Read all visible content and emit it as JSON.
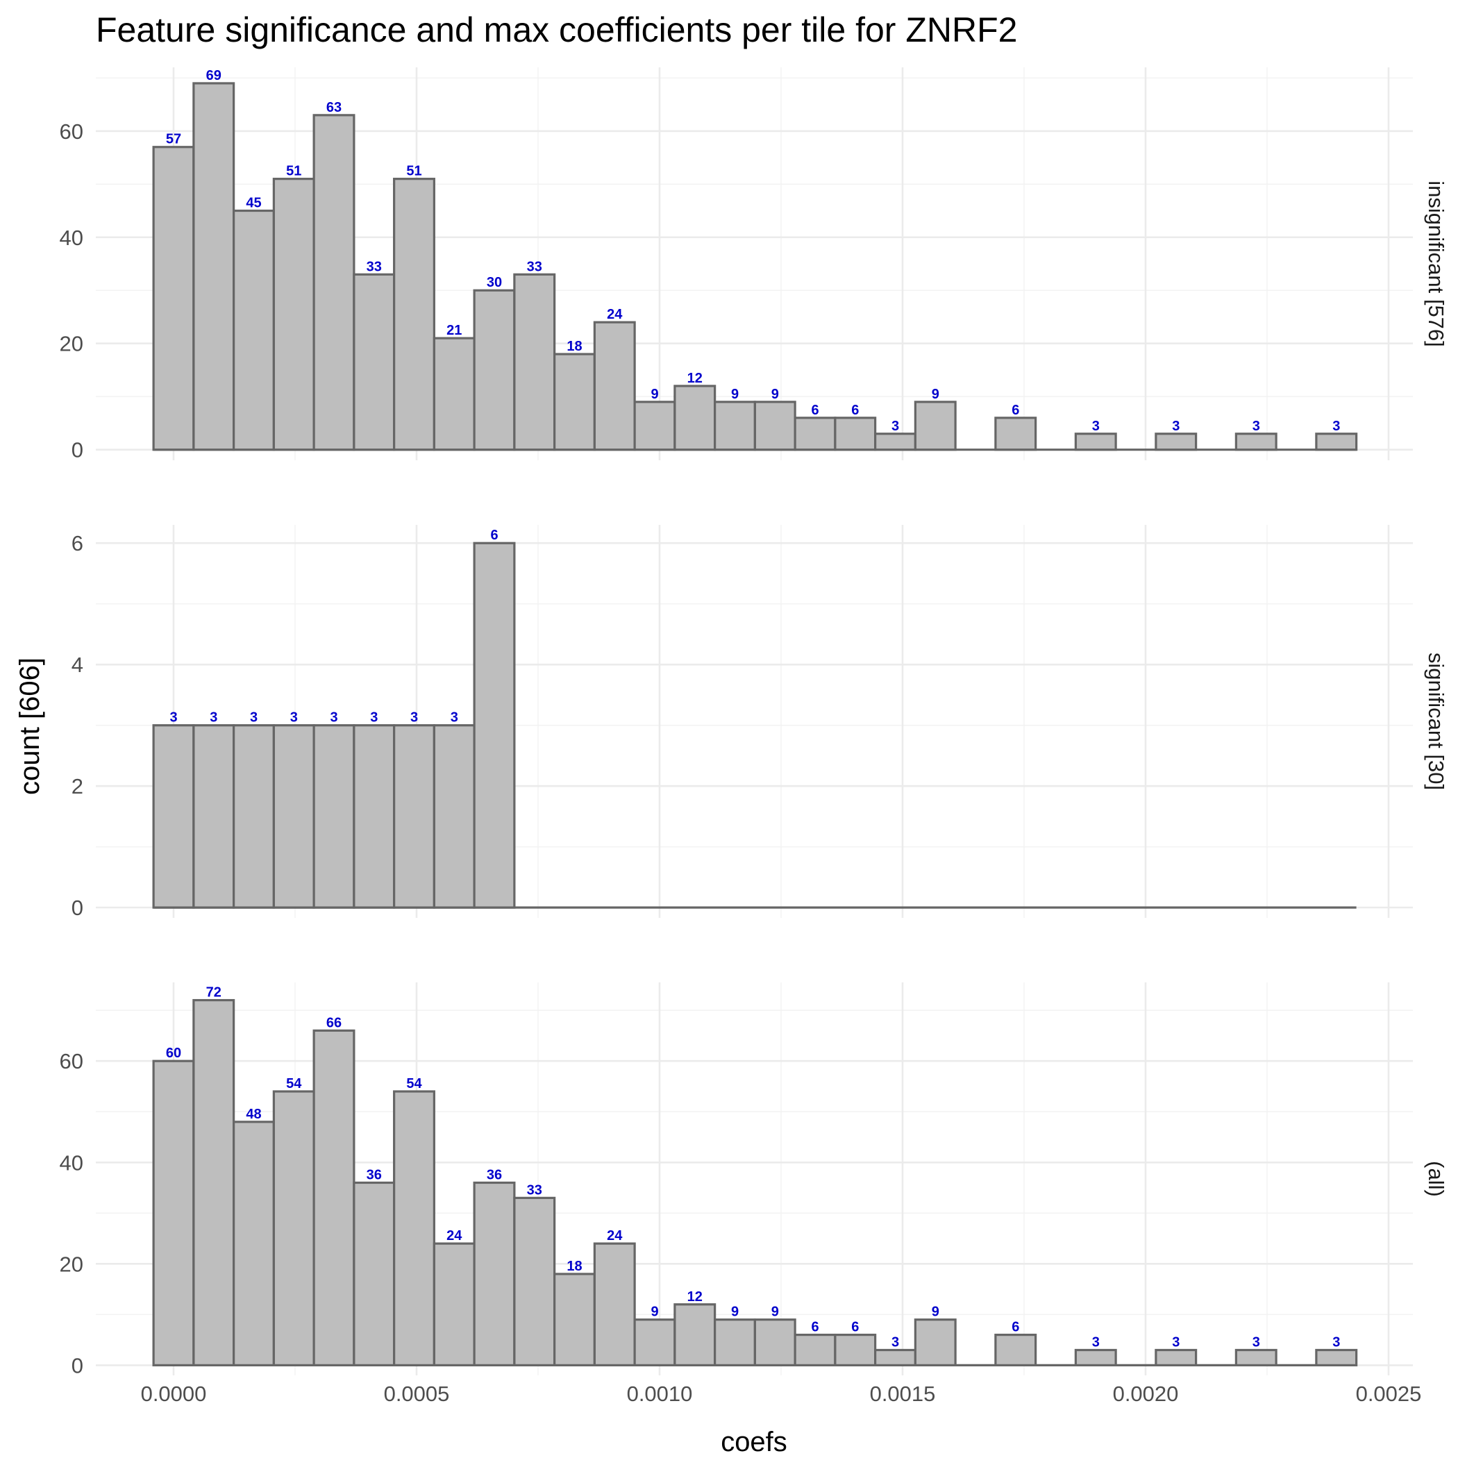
{
  "chart_data": {
    "type": "bar",
    "title": "Feature significance and max coefficients per tile for ZNRF2",
    "xlabel": "coefs",
    "ylabel": "count [606]",
    "x_ticks": [
      "0.0000",
      "0.0005",
      "0.0010",
      "0.0015",
      "0.0020",
      "0.0025"
    ],
    "x_tick_values": [
      0,
      0.0005,
      0.001,
      0.0015,
      0.002,
      0.0025
    ],
    "xlim": [
      -0.00016,
      0.00255
    ],
    "bin_width": 8.25e-05,
    "bin_centers": [
      0.0,
      8.25e-05,
      0.000165,
      0.0002475,
      0.00033,
      0.0004125,
      0.000495,
      0.0005775,
      0.00066,
      0.0007425,
      0.000825,
      0.0009075,
      0.00099,
      0.0010725,
      0.001155,
      0.0012375,
      0.00132,
      0.0014025,
      0.001485,
      0.0015675,
      0.00165,
      0.0017325,
      0.001815,
      0.0018975,
      0.00198,
      0.0020625,
      0.002145,
      0.0022275,
      0.00231,
      0.0023925
    ],
    "grid": true,
    "legend": "none",
    "panels": [
      {
        "label": "insignificant [576]",
        "ylim": [
          -2,
          72
        ],
        "y_ticks": [
          0,
          20,
          40,
          60
        ],
        "y_tick_labels": [
          "0",
          "20",
          "40",
          "60"
        ],
        "values": [
          57,
          69,
          45,
          51,
          63,
          33,
          51,
          21,
          30,
          33,
          18,
          24,
          9,
          12,
          9,
          9,
          6,
          6,
          3,
          9,
          0,
          6,
          0,
          3,
          0,
          3,
          0,
          3,
          0,
          3
        ]
      },
      {
        "label": "significant [30]",
        "ylim": [
          -0.17,
          6.3
        ],
        "y_ticks": [
          0,
          2,
          4,
          6
        ],
        "y_tick_labels": [
          "0",
          "2",
          "4",
          "6"
        ],
        "values": [
          3,
          3,
          3,
          3,
          3,
          3,
          3,
          3,
          6,
          0,
          0,
          0,
          0,
          0,
          0,
          0,
          0,
          0,
          0,
          0,
          0,
          0,
          0,
          0,
          0,
          0,
          0,
          0,
          0,
          0
        ]
      },
      {
        "label": "(all)",
        "ylim": [
          -2,
          75.5
        ],
        "y_ticks": [
          0,
          20,
          40,
          60
        ],
        "y_tick_labels": [
          "0",
          "20",
          "40",
          "60"
        ],
        "values": [
          60,
          72,
          48,
          54,
          66,
          36,
          54,
          24,
          36,
          33,
          18,
          24,
          9,
          12,
          9,
          9,
          6,
          6,
          3,
          9,
          0,
          6,
          0,
          3,
          0,
          3,
          0,
          3,
          0,
          3
        ]
      }
    ],
    "colors": {
      "bar_fill": "#bebebe",
      "bar_outline": "#666666",
      "bar_label": "#0000cc",
      "grid": "#ebebeb"
    }
  }
}
